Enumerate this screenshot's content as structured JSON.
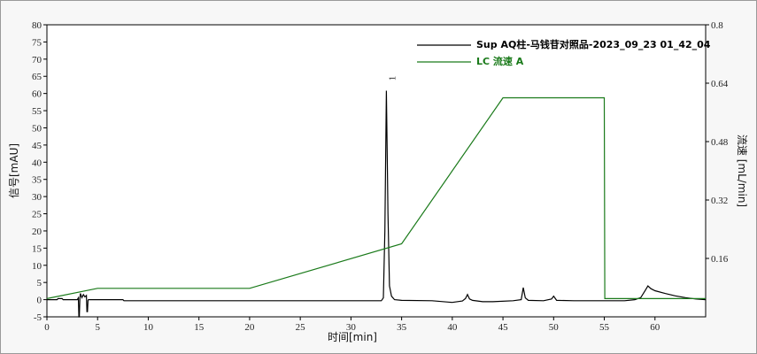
{
  "chart_data": {
    "type": "line",
    "xlabel": "时间[min]",
    "ylabel": "信号[mAU]",
    "y2label": "流速 [mL/min]",
    "xlim": [
      0,
      65
    ],
    "ylim": [
      -5,
      80
    ],
    "y2lim": [
      0,
      0.8
    ],
    "x_ticks": [
      "0",
      "5",
      "10",
      "15",
      "20",
      "25",
      "30",
      "35",
      "40",
      "45",
      "50",
      "55",
      "60"
    ],
    "y_ticks": [
      "-5",
      "0",
      "5",
      "10",
      "15",
      "20",
      "25",
      "30",
      "35",
      "40",
      "45",
      "50",
      "55",
      "60",
      "65",
      "70",
      "75",
      "80"
    ],
    "y2_ticks": [
      "0.16",
      "0.32",
      "0.48",
      "0.64",
      "0.8"
    ],
    "grid": false,
    "legend_position": "top-right",
    "peak_labels": [
      {
        "label": "1",
        "x": 33.5,
        "y": 60.8
      }
    ],
    "series": [
      {
        "name": "Sup AQ柱-马钱苷对照品-2023_09_23 01_42_04",
        "color": "#000000",
        "axis": "left",
        "x": [
          0,
          1,
          1.1,
          1.5,
          1.6,
          3.0,
          3.1,
          3.15,
          3.2,
          3.25,
          3.3,
          3.45,
          3.6,
          3.75,
          3.9,
          3.95,
          4.0,
          4.05,
          4.1,
          4.2,
          7.5,
          7.6,
          20,
          30,
          33.0,
          33.2,
          33.35,
          33.5,
          33.65,
          33.8,
          34.0,
          34.3,
          35,
          38,
          40,
          41.0,
          41.3,
          41.5,
          41.7,
          42,
          43,
          44,
          46,
          46.8,
          47.0,
          47.2,
          47.5,
          49,
          49.8,
          50.0,
          50.3,
          52,
          55,
          57,
          58,
          58.6,
          59.0,
          59.3,
          59.6,
          60,
          61,
          62,
          63,
          64,
          65
        ],
        "y": [
          0,
          0,
          0.3,
          0.3,
          0,
          0,
          0.5,
          -5,
          -5,
          0.2,
          1.8,
          0.6,
          1.5,
          0.8,
          1.2,
          -3.5,
          -3.5,
          -0.2,
          0,
          0,
          0,
          -0.3,
          -0.3,
          -0.3,
          -0.3,
          0.5,
          20,
          60.8,
          25,
          4,
          1,
          0,
          -0.2,
          -0.3,
          -0.8,
          -0.4,
          0.3,
          1.5,
          0.2,
          -0.2,
          -0.6,
          -0.6,
          -0.3,
          0,
          3.5,
          0.5,
          -0.2,
          -0.3,
          0.2,
          1.0,
          -0.2,
          -0.3,
          -0.3,
          -0.3,
          0,
          0.6,
          2.5,
          4.0,
          3.2,
          2.6,
          1.8,
          1.1,
          0.6,
          0.2,
          0
        ]
      },
      {
        "name": "LC 流速 A",
        "color": "#1a7a1a",
        "axis": "right",
        "x": [
          0,
          5,
          20,
          35,
          45,
          55,
          55.05,
          65
        ],
        "y": [
          0.05,
          0.078,
          0.078,
          0.2,
          0.6,
          0.6,
          0.05,
          0.05
        ]
      }
    ]
  }
}
